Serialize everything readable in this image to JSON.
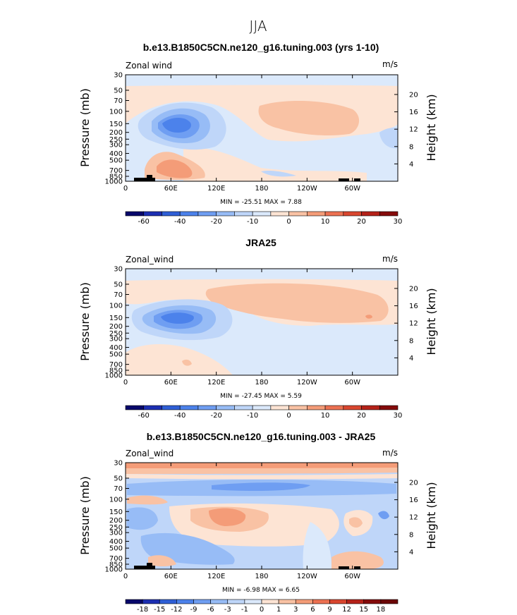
{
  "supertitle": "JJA",
  "chart_data": [
    {
      "type": "heatmap",
      "title": "b.e13.B1850C5CN.ne120_g16.tuning.003 (yrs 1-10)",
      "variable_label": "Zonal wind",
      "units": "m/s",
      "ylabel_left": "Pressure (mb)",
      "ylabel_right": "Height (km)",
      "x_ticks": [
        "0",
        "60E",
        "120E",
        "180",
        "120W",
        "60W"
      ],
      "y_ticks": [
        "30",
        "50",
        "70",
        "100",
        "150",
        "200",
        "250",
        "300",
        "400",
        "500",
        "700",
        "850",
        "1000"
      ],
      "height_ticks": [
        "20",
        "16",
        "12",
        "8",
        "4"
      ],
      "stats_text": "MIN = -25.51   MAX =   7.88",
      "min": -25.51,
      "max": 7.88,
      "colorbar_labels": [
        "-60",
        "-40",
        "-20",
        "-10",
        "0",
        "10",
        "20",
        "30"
      ]
    },
    {
      "type": "heatmap",
      "title": "JRA25",
      "variable_label": "Zonal_wind",
      "units": "m/s",
      "ylabel_left": "Pressure (mb)",
      "ylabel_right": "Height (km)",
      "x_ticks": [
        "0",
        "60E",
        "120E",
        "180",
        "120W",
        "60W"
      ],
      "y_ticks": [
        "30",
        "50",
        "70",
        "100",
        "150",
        "200",
        "250",
        "300",
        "400",
        "500",
        "700",
        "850",
        "1000"
      ],
      "height_ticks": [
        "20",
        "16",
        "12",
        "8",
        "4"
      ],
      "stats_text": "MIN = -27.45   MAX =   5.59",
      "min": -27.45,
      "max": 5.59,
      "colorbar_labels": [
        "-60",
        "-40",
        "-20",
        "-10",
        "0",
        "10",
        "20",
        "30"
      ]
    },
    {
      "type": "heatmap",
      "title": "b.e13.B1850C5CN.ne120_g16.tuning.003 - JRA25",
      "variable_label": "Zonal_wind",
      "units": "m/s",
      "ylabel_left": "Pressure (mb)",
      "ylabel_right": "Height (km)",
      "x_ticks": [
        "0",
        "60E",
        "120E",
        "180",
        "120W",
        "60W"
      ],
      "y_ticks": [
        "30",
        "50",
        "70",
        "100",
        "150",
        "200",
        "250",
        "300",
        "400",
        "500",
        "700",
        "850",
        "1000"
      ],
      "height_ticks": [
        "20",
        "16",
        "12",
        "8",
        "4"
      ],
      "stats_text": "MIN =  -6.98   MAX =   6.65",
      "min": -6.98,
      "max": 6.65,
      "colorbar_labels": [
        "-18",
        "-15",
        "-12",
        "-9",
        "-6",
        "-3",
        "-1",
        "0",
        "1",
        "3",
        "6",
        "9",
        "12",
        "15",
        "18"
      ]
    }
  ],
  "colors": {
    "cb_full": [
      "#08086b",
      "#1c2fb2",
      "#2f5fd6",
      "#4c82eb",
      "#6f9ef2",
      "#97bcf6",
      "#bfd6f9",
      "#dbe9fb",
      "#fde4d4",
      "#f9c2a4",
      "#f49c78",
      "#ec7152",
      "#d9462f",
      "#b52219",
      "#850b0b"
    ],
    "cb_diff": [
      "#08086b",
      "#1c2fb2",
      "#2f5fd6",
      "#4c82eb",
      "#6f9ef2",
      "#97bcf6",
      "#bfd6f9",
      "#dbe9fb",
      "#fde4d4",
      "#f9c2a4",
      "#f49c78",
      "#ec7152",
      "#d9462f",
      "#b52219",
      "#850b0b",
      "#6b0606"
    ],
    "neutral_neg": "#dbe9fb",
    "neutral_pos": "#fde4d4",
    "topo": "#000000"
  }
}
